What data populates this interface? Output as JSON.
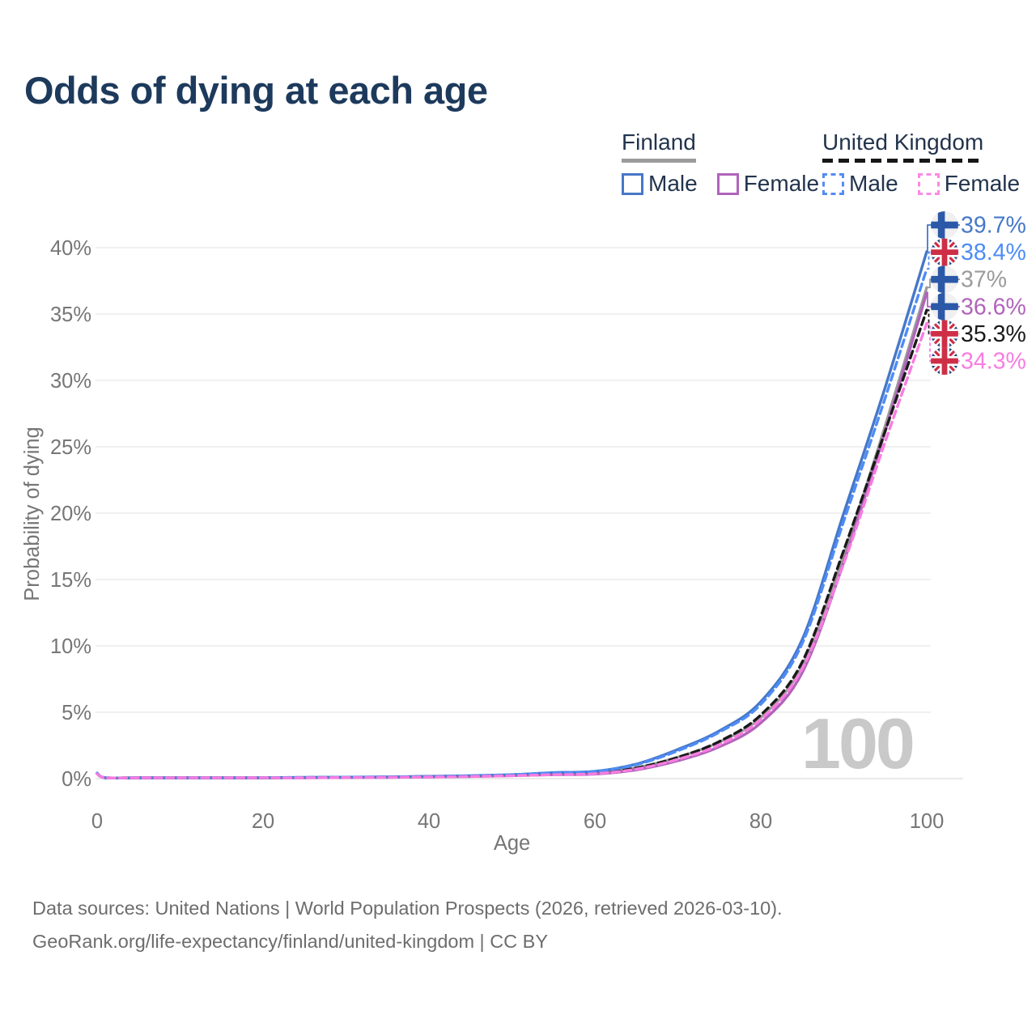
{
  "title": "Odds of dying at each age",
  "legend": {
    "groups": [
      {
        "label": "Finland",
        "line_style": "solid",
        "underline_color": "#9b9b9b",
        "items": [
          {
            "label": "Male",
            "color": "#4678c8",
            "dashed": false
          },
          {
            "label": "Female",
            "color": "#b163bb",
            "dashed": false
          }
        ]
      },
      {
        "label": "United Kingdom",
        "line_style": "dashed",
        "underline_color": "#161616",
        "items": [
          {
            "label": "Male",
            "color": "#548cf0",
            "dashed": true
          },
          {
            "label": "Female",
            "color": "#fa8ae6",
            "dashed": true
          }
        ]
      }
    ]
  },
  "watermark": "100",
  "footer": {
    "line1": "Data sources: United Nations | World Population Prospects (2026, retrieved 2026-03-10).",
    "line2": "GeoRank.org/life-expectancy/finland/united-kingdom | CC BY"
  },
  "chart_data": {
    "type": "line",
    "title": "Odds of dying at each age",
    "xlabel": "Age",
    "ylabel": "Probability of dying",
    "xlim": [
      0,
      100
    ],
    "ylim": [
      0,
      40
    ],
    "grid": true,
    "x_ticks": [
      {
        "label": "0",
        "value": 0
      },
      {
        "label": "20",
        "value": 20
      },
      {
        "label": "40",
        "value": 40
      },
      {
        "label": "60",
        "value": 60
      },
      {
        "label": "80",
        "value": 80
      },
      {
        "label": "100",
        "value": 100
      }
    ],
    "y_ticks": [
      {
        "label": "0%",
        "value": 0
      },
      {
        "label": "5%",
        "value": 5
      },
      {
        "label": "10%",
        "value": 10
      },
      {
        "label": "15%",
        "value": 15
      },
      {
        "label": "20%",
        "value": 20
      },
      {
        "label": "25%",
        "value": 25
      },
      {
        "label": "30%",
        "value": 30
      },
      {
        "label": "35%",
        "value": 35
      },
      {
        "label": "40%",
        "value": 40
      }
    ],
    "series": [
      {
        "id": "fi-total",
        "name": "Finland",
        "country": "finland",
        "sex": "total",
        "color": "#9b9b9b",
        "dashed": false,
        "z": 0,
        "end_value": 37.0,
        "end_label": "37%",
        "points": [
          [
            0,
            0.39
          ],
          [
            1,
            0.04
          ],
          [
            5,
            0.02
          ],
          [
            10,
            0.02
          ],
          [
            15,
            0.05
          ],
          [
            20,
            0.06
          ],
          [
            25,
            0.08
          ],
          [
            30,
            0.1
          ],
          [
            35,
            0.12
          ],
          [
            40,
            0.15
          ],
          [
            45,
            0.2
          ],
          [
            50,
            0.26
          ],
          [
            55,
            0.36
          ],
          [
            60,
            0.43
          ],
          [
            65,
            0.82
          ],
          [
            70,
            1.62
          ],
          [
            75,
            2.75
          ],
          [
            80,
            4.6
          ],
          [
            85,
            8.5
          ],
          [
            90,
            16.9
          ],
          [
            95,
            26.6
          ],
          [
            100,
            37.0
          ]
        ]
      },
      {
        "id": "fi-female",
        "name": "Finland Female",
        "country": "finland",
        "sex": "female",
        "color": "#b163bb",
        "dashed": false,
        "z": 1,
        "end_value": 36.6,
        "end_label": "36.6%",
        "points": [
          [
            0,
            0.37
          ],
          [
            1,
            0.03
          ],
          [
            5,
            0.015
          ],
          [
            10,
            0.015
          ],
          [
            15,
            0.04
          ],
          [
            20,
            0.05
          ],
          [
            25,
            0.06
          ],
          [
            30,
            0.08
          ],
          [
            35,
            0.09
          ],
          [
            40,
            0.12
          ],
          [
            45,
            0.16
          ],
          [
            50,
            0.22
          ],
          [
            55,
            0.29
          ],
          [
            60,
            0.34
          ],
          [
            65,
            0.66
          ],
          [
            70,
            1.35
          ],
          [
            75,
            2.4
          ],
          [
            80,
            4.2
          ],
          [
            85,
            8.0
          ],
          [
            90,
            16.3
          ],
          [
            95,
            26.2
          ],
          [
            100,
            36.6
          ]
        ]
      },
      {
        "id": "fi-male",
        "name": "Finland Male",
        "country": "finland",
        "sex": "male",
        "color": "#4678c8",
        "dashed": false,
        "z": 2,
        "end_value": 39.7,
        "end_label": "39.7%",
        "points": [
          [
            0,
            0.42
          ],
          [
            1,
            0.04
          ],
          [
            5,
            0.02
          ],
          [
            10,
            0.02
          ],
          [
            15,
            0.05
          ],
          [
            20,
            0.07
          ],
          [
            25,
            0.09
          ],
          [
            30,
            0.11
          ],
          [
            35,
            0.13
          ],
          [
            40,
            0.17
          ],
          [
            45,
            0.22
          ],
          [
            50,
            0.3
          ],
          [
            55,
            0.45
          ],
          [
            60,
            0.55
          ],
          [
            65,
            1.1
          ],
          [
            70,
            2.2
          ],
          [
            75,
            3.6
          ],
          [
            80,
            5.8
          ],
          [
            85,
            10.5
          ],
          [
            90,
            20.0
          ],
          [
            95,
            29.5
          ],
          [
            100,
            39.7
          ]
        ]
      },
      {
        "id": "uk-total",
        "name": "United Kingdom",
        "country": "uk",
        "sex": "total",
        "color": "#1a1a1a",
        "dashed": true,
        "z": 3,
        "end_value": 35.3,
        "end_label": "35.3%",
        "points": [
          [
            0,
            0.38
          ],
          [
            1,
            0.04
          ],
          [
            5,
            0.02
          ],
          [
            10,
            0.02
          ],
          [
            15,
            0.04
          ],
          [
            20,
            0.06
          ],
          [
            25,
            0.08
          ],
          [
            30,
            0.1
          ],
          [
            35,
            0.12
          ],
          [
            40,
            0.15
          ],
          [
            45,
            0.19
          ],
          [
            50,
            0.26
          ],
          [
            55,
            0.34
          ],
          [
            60,
            0.42
          ],
          [
            65,
            0.8
          ],
          [
            70,
            1.6
          ],
          [
            75,
            2.8
          ],
          [
            80,
            4.8
          ],
          [
            85,
            8.8
          ],
          [
            90,
            17.2
          ],
          [
            95,
            26.2
          ],
          [
            100,
            35.3
          ]
        ]
      },
      {
        "id": "uk-male",
        "name": "United Kingdom Male",
        "country": "uk",
        "sex": "male",
        "color": "#4e8cf7",
        "dashed": true,
        "z": 4,
        "end_value": 38.4,
        "end_label": "38.4%",
        "points": [
          [
            0,
            0.41
          ],
          [
            1,
            0.04
          ],
          [
            5,
            0.02
          ],
          [
            10,
            0.02
          ],
          [
            15,
            0.05
          ],
          [
            20,
            0.07
          ],
          [
            25,
            0.09
          ],
          [
            30,
            0.11
          ],
          [
            35,
            0.13
          ],
          [
            40,
            0.16
          ],
          [
            45,
            0.21
          ],
          [
            50,
            0.29
          ],
          [
            55,
            0.44
          ],
          [
            60,
            0.54
          ],
          [
            65,
            1.05
          ],
          [
            70,
            2.1
          ],
          [
            75,
            3.5
          ],
          [
            80,
            5.6
          ],
          [
            85,
            10.2
          ],
          [
            90,
            19.4
          ],
          [
            95,
            28.7
          ],
          [
            100,
            38.4
          ]
        ]
      },
      {
        "id": "uk-female",
        "name": "United Kingdom Female",
        "country": "uk",
        "sex": "female",
        "color": "#f97ce0",
        "dashed": true,
        "z": 5,
        "end_value": 34.3,
        "end_label": "34.3%",
        "points": [
          [
            0,
            0.36
          ],
          [
            1,
            0.03
          ],
          [
            5,
            0.015
          ],
          [
            10,
            0.015
          ],
          [
            15,
            0.035
          ],
          [
            20,
            0.05
          ],
          [
            25,
            0.06
          ],
          [
            30,
            0.08
          ],
          [
            35,
            0.1
          ],
          [
            40,
            0.12
          ],
          [
            45,
            0.16
          ],
          [
            50,
            0.22
          ],
          [
            55,
            0.3
          ],
          [
            60,
            0.37
          ],
          [
            65,
            0.72
          ],
          [
            70,
            1.45
          ],
          [
            75,
            2.55
          ],
          [
            80,
            4.45
          ],
          [
            85,
            8.3
          ],
          [
            90,
            16.2
          ],
          [
            95,
            25.4
          ],
          [
            100,
            34.3
          ]
        ]
      }
    ]
  }
}
